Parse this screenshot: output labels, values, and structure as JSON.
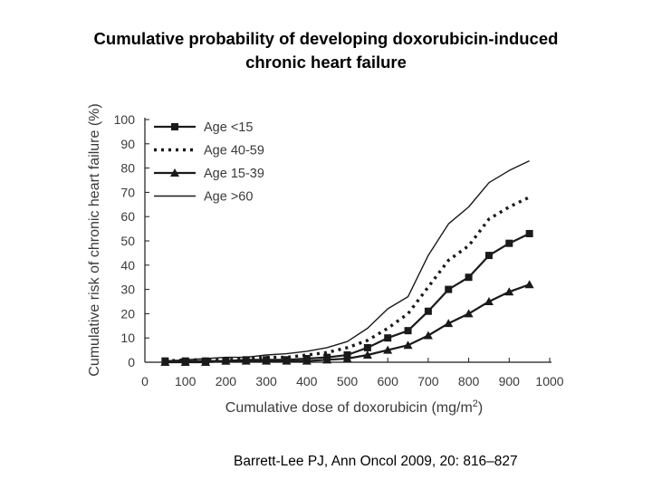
{
  "slide": {
    "title_line1": "Cumulative probability of developing doxorubicin-induced",
    "title_line2": "chronic heart failure",
    "citation": "Barrett-Lee PJ, Ann Oncol 2009, 20: 816–827"
  },
  "colors": {
    "ink": "#1a1a1a",
    "axis_text": "#3a3a3a",
    "background": "#ffffff"
  },
  "chart_data": {
    "type": "line",
    "title": "",
    "xlabel": "Cumulative dose of doxorubicin (mg/m2)",
    "xlabel_main": "Cumulative dose of doxorubicin (mg/m",
    "xlabel_sup": "2",
    "xlabel_end": ")",
    "ylabel": "Cumulative risk of chronic heart failure (%)",
    "xlim": [
      0,
      1000
    ],
    "ylim": [
      0,
      100
    ],
    "xticks": [
      0,
      100,
      200,
      300,
      400,
      500,
      600,
      700,
      800,
      900,
      1000
    ],
    "yticks": [
      0,
      10,
      20,
      30,
      40,
      50,
      60,
      70,
      80,
      90,
      100
    ],
    "grid": false,
    "legend_position": "top-left",
    "x": [
      50,
      100,
      150,
      200,
      250,
      300,
      350,
      400,
      450,
      500,
      550,
      600,
      650,
      700,
      750,
      800,
      850,
      900,
      950
    ],
    "series": [
      {
        "name": "Age <15",
        "style": "solid-square",
        "values": [
          0.5,
          0.5,
          0.5,
          0.5,
          1,
          1,
          1,
          1.5,
          2,
          3,
          6,
          10,
          13,
          21,
          30,
          35,
          44,
          49,
          53
        ]
      },
      {
        "name": "Age 40-59",
        "style": "dotted",
        "values": [
          0.5,
          1,
          1,
          1,
          1.5,
          2,
          2,
          3,
          4,
          6,
          9,
          14,
          20,
          31,
          42,
          48,
          59,
          64,
          68
        ]
      },
      {
        "name": "Age 15-39",
        "style": "solid-triangle",
        "values": [
          0,
          0,
          0,
          0.5,
          0.5,
          0.5,
          0.5,
          0.5,
          1,
          1.5,
          3,
          5,
          7,
          11,
          16,
          20,
          25,
          29,
          32
        ]
      },
      {
        "name": "Age >60",
        "style": "solid-thin",
        "values": [
          0.5,
          1,
          1.5,
          2,
          2,
          3,
          3.5,
          4.5,
          6,
          8.5,
          14,
          22,
          27,
          44,
          57,
          64,
          74,
          79,
          83
        ]
      }
    ]
  }
}
